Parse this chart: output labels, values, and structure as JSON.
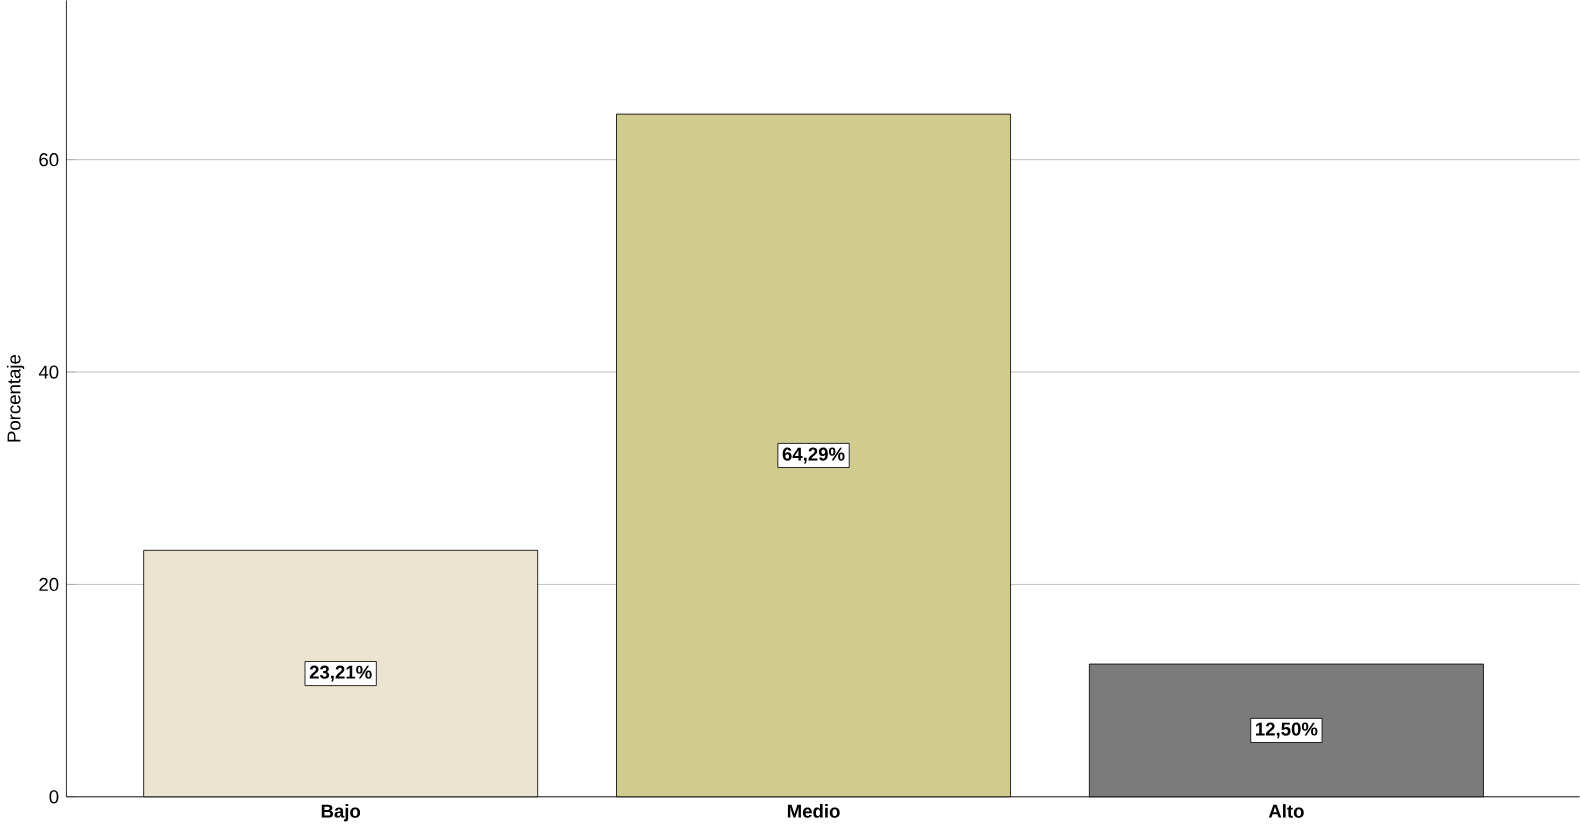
{
  "chart_data": {
    "type": "bar",
    "ylabel": "Porcentaje",
    "categories": [
      "Bajo",
      "Medio",
      "Alto"
    ],
    "values": [
      23.21,
      64.29,
      12.5
    ],
    "colors": [
      "#ebe4d0",
      "#d0cb8f",
      "#7b7b7b"
    ],
    "value_labels": [
      "23,21%",
      "64,29%",
      "12,50%"
    ],
    "ylim": [
      0,
      75
    ],
    "yticks": [
      0,
      20,
      40,
      60
    ],
    "grid": "y"
  }
}
